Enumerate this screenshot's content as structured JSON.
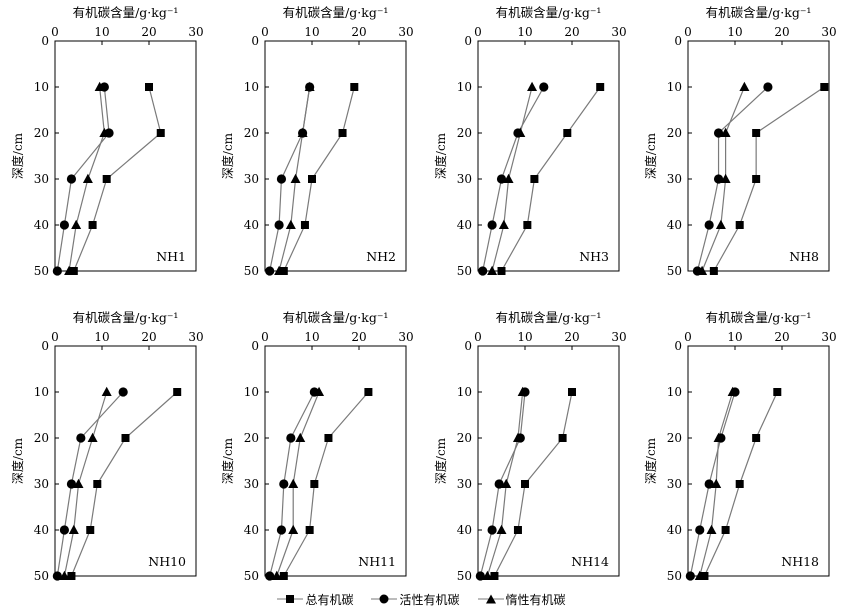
{
  "chart_data": [
    {
      "type": "line",
      "panel_label": "NH1",
      "xlabel": "有机碳含量/g·kg⁻¹",
      "ylabel": "深度/cm",
      "xlim": [
        0,
        30
      ],
      "ylim": [
        50,
        0
      ],
      "xticks": [
        0,
        10,
        20,
        30
      ],
      "yticks": [
        0,
        10,
        20,
        30,
        40,
        50
      ],
      "series": [
        {
          "name": "总有机碳",
          "marker": "square",
          "x": [
            20,
            22.5,
            11,
            8,
            4
          ],
          "y": [
            10,
            20,
            30,
            40,
            50
          ]
        },
        {
          "name": "活性有机碳",
          "marker": "circle",
          "x": [
            10.5,
            11.5,
            3.5,
            2,
            0.5
          ],
          "y": [
            10,
            20,
            30,
            40,
            50
          ]
        },
        {
          "name": "惰性有机碳",
          "marker": "triangle",
          "x": [
            9.5,
            10.5,
            7,
            4.5,
            3
          ],
          "y": [
            10,
            20,
            30,
            40,
            50
          ]
        }
      ]
    },
    {
      "type": "line",
      "panel_label": "NH2",
      "xlabel": "有机碳含量/g·kg⁻¹",
      "ylabel": "深度/cm",
      "xlim": [
        0,
        30
      ],
      "ylim": [
        50,
        0
      ],
      "xticks": [
        0,
        10,
        20,
        30
      ],
      "yticks": [
        0,
        10,
        20,
        30,
        40,
        50
      ],
      "series": [
        {
          "name": "总有机碳",
          "marker": "square",
          "x": [
            19,
            16.5,
            10,
            8.5,
            4
          ],
          "y": [
            10,
            20,
            30,
            40,
            50
          ]
        },
        {
          "name": "活性有机碳",
          "marker": "circle",
          "x": [
            9.5,
            8,
            3.5,
            3,
            1
          ],
          "y": [
            10,
            20,
            30,
            40,
            50
          ]
        },
        {
          "name": "惰性有机碳",
          "marker": "triangle",
          "x": [
            9.5,
            8,
            6.5,
            5.5,
            3
          ],
          "y": [
            10,
            20,
            30,
            40,
            50
          ]
        }
      ]
    },
    {
      "type": "line",
      "panel_label": "NH3",
      "xlabel": "有机碳含量/g·kg⁻¹",
      "ylabel": "深度/cm",
      "xlim": [
        0,
        30
      ],
      "ylim": [
        50,
        0
      ],
      "xticks": [
        0,
        10,
        20,
        30
      ],
      "yticks": [
        0,
        10,
        20,
        30,
        40,
        50
      ],
      "series": [
        {
          "name": "总有机碳",
          "marker": "square",
          "x": [
            26,
            19,
            12,
            10.5,
            5
          ],
          "y": [
            10,
            20,
            30,
            40,
            50
          ]
        },
        {
          "name": "活性有机碳",
          "marker": "circle",
          "x": [
            14,
            8.5,
            5,
            3,
            1
          ],
          "y": [
            10,
            20,
            30,
            40,
            50
          ]
        },
        {
          "name": "惰性有机碳",
          "marker": "triangle",
          "x": [
            11.5,
            9,
            6.5,
            5.5,
            3
          ],
          "y": [
            10,
            20,
            30,
            40,
            50
          ]
        }
      ]
    },
    {
      "type": "line",
      "panel_label": "NH8",
      "xlabel": "有机碳含量/g·kg⁻¹",
      "ylabel": "深度/cm",
      "xlim": [
        0,
        30
      ],
      "ylim": [
        50,
        0
      ],
      "xticks": [
        0,
        10,
        20,
        30
      ],
      "yticks": [
        0,
        10,
        20,
        30,
        40,
        50
      ],
      "series": [
        {
          "name": "总有机碳",
          "marker": "square",
          "x": [
            29,
            14.5,
            14.5,
            11,
            5.5
          ],
          "y": [
            10,
            20,
            30,
            40,
            50
          ]
        },
        {
          "name": "活性有机碳",
          "marker": "circle",
          "x": [
            17,
            6.5,
            6.5,
            4.5,
            2
          ],
          "y": [
            10,
            20,
            30,
            40,
            50
          ]
        },
        {
          "name": "惰性有机碳",
          "marker": "triangle",
          "x": [
            12,
            8,
            8,
            7,
            3
          ],
          "y": [
            10,
            20,
            30,
            40,
            50
          ]
        }
      ]
    },
    {
      "type": "line",
      "panel_label": "NH10",
      "xlabel": "有机碳含量/g·kg⁻¹",
      "ylabel": "深度/cm",
      "xlim": [
        0,
        30
      ],
      "ylim": [
        50,
        0
      ],
      "xticks": [
        0,
        10,
        20,
        30
      ],
      "yticks": [
        0,
        10,
        20,
        30,
        40,
        50
      ],
      "series": [
        {
          "name": "总有机碳",
          "marker": "square",
          "x": [
            26,
            15,
            9,
            7.5,
            3.5
          ],
          "y": [
            10,
            20,
            30,
            40,
            50
          ]
        },
        {
          "name": "活性有机碳",
          "marker": "circle",
          "x": [
            14.5,
            5.5,
            3.5,
            2,
            0.5
          ],
          "y": [
            10,
            20,
            30,
            40,
            50
          ]
        },
        {
          "name": "惰性有机碳",
          "marker": "triangle",
          "x": [
            11,
            8,
            5,
            4,
            2
          ],
          "y": [
            10,
            20,
            30,
            40,
            50
          ]
        }
      ]
    },
    {
      "type": "line",
      "panel_label": "NH11",
      "xlabel": "有机碳含量/g·kg⁻¹",
      "ylabel": "深度/cm",
      "xlim": [
        0,
        30
      ],
      "ylim": [
        50,
        0
      ],
      "xticks": [
        0,
        10,
        20,
        30
      ],
      "yticks": [
        0,
        10,
        20,
        30,
        40,
        50
      ],
      "series": [
        {
          "name": "总有机碳",
          "marker": "square",
          "x": [
            22,
            13.5,
            10.5,
            9.5,
            4
          ],
          "y": [
            10,
            20,
            30,
            40,
            50
          ]
        },
        {
          "name": "活性有机碳",
          "marker": "circle",
          "x": [
            10.5,
            5.5,
            4,
            3.5,
            1
          ],
          "y": [
            10,
            20,
            30,
            40,
            50
          ]
        },
        {
          "name": "惰性有机碳",
          "marker": "triangle",
          "x": [
            11.5,
            7.5,
            6,
            6,
            2.5
          ],
          "y": [
            10,
            20,
            30,
            40,
            50
          ]
        }
      ]
    },
    {
      "type": "line",
      "panel_label": "NH14",
      "xlabel": "有机碳含量/g·kg⁻¹",
      "ylabel": "深度/cm",
      "xlim": [
        0,
        30
      ],
      "ylim": [
        50,
        0
      ],
      "xticks": [
        0,
        10,
        20,
        30
      ],
      "yticks": [
        0,
        10,
        20,
        30,
        40,
        50
      ],
      "series": [
        {
          "name": "总有机碳",
          "marker": "square",
          "x": [
            20,
            18,
            10,
            8.5,
            3.5
          ],
          "y": [
            10,
            20,
            30,
            40,
            50
          ]
        },
        {
          "name": "活性有机碳",
          "marker": "circle",
          "x": [
            10,
            9,
            4.5,
            3,
            0.5
          ],
          "y": [
            10,
            20,
            30,
            40,
            50
          ]
        },
        {
          "name": "惰性有机碳",
          "marker": "triangle",
          "x": [
            9.5,
            8.5,
            6,
            5,
            2
          ],
          "y": [
            10,
            20,
            30,
            40,
            50
          ]
        }
      ]
    },
    {
      "type": "line",
      "panel_label": "NH18",
      "xlabel": "有机碳含量/g·kg⁻¹",
      "ylabel": "深度/cm",
      "xlim": [
        0,
        30
      ],
      "ylim": [
        50,
        0
      ],
      "xticks": [
        0,
        10,
        20,
        30
      ],
      "yticks": [
        0,
        10,
        20,
        30,
        40,
        50
      ],
      "series": [
        {
          "name": "总有机碳",
          "marker": "square",
          "x": [
            19,
            14.5,
            11,
            8,
            3.5
          ],
          "y": [
            10,
            20,
            30,
            40,
            50
          ]
        },
        {
          "name": "活性有机碳",
          "marker": "circle",
          "x": [
            10,
            7,
            4.5,
            2.5,
            0.5
          ],
          "y": [
            10,
            20,
            30,
            40,
            50
          ]
        },
        {
          "name": "惰性有机碳",
          "marker": "triangle",
          "x": [
            9.5,
            6.5,
            6,
            5,
            2.5
          ],
          "y": [
            10,
            20,
            30,
            40,
            50
          ]
        }
      ]
    }
  ],
  "legend": {
    "items": [
      {
        "label": "总有机碳",
        "marker": "square"
      },
      {
        "label": "活性有机碳",
        "marker": "circle"
      },
      {
        "label": "惰性有机碳",
        "marker": "triangle"
      }
    ]
  },
  "colors": {
    "ink": "#000000",
    "line": "#7a7a7a"
  }
}
